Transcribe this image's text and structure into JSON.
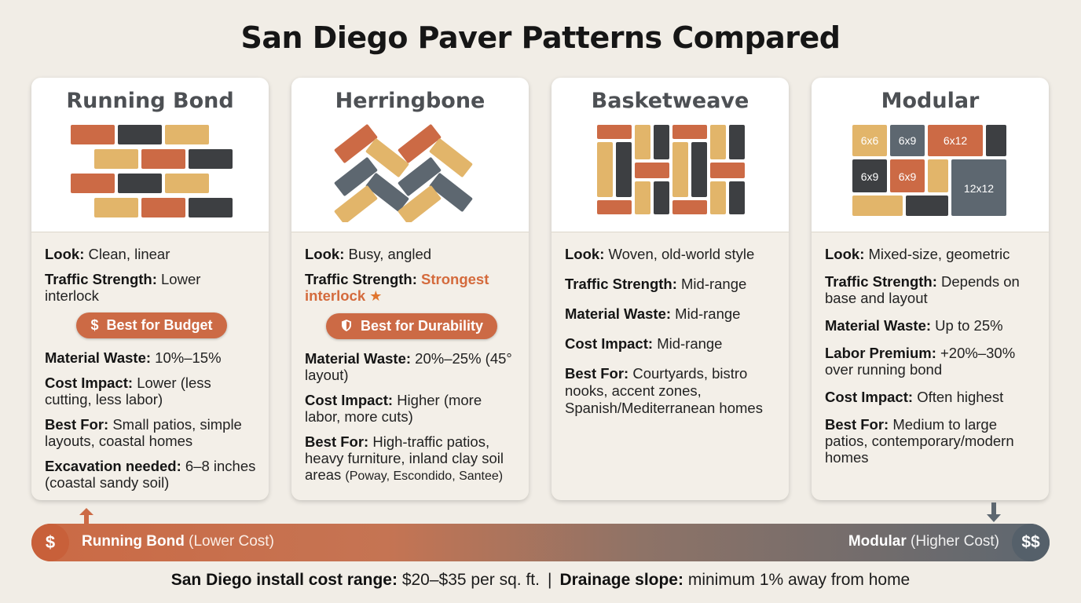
{
  "title": "San Diego Paver Patterns Compared",
  "colors": {
    "terracotta": "#cc6a45",
    "sand": "#e2b56a",
    "charcoal": "#3d3f42",
    "slate": "#5d6770",
    "background": "#f1ede6"
  },
  "cards": [
    {
      "name": "Running Bond",
      "rows": [
        {
          "label": "Look:",
          "value": "Clean, linear"
        },
        {
          "label": "Traffic Strength:",
          "value": "Lower interlock"
        }
      ],
      "badge": {
        "icon": "$",
        "text": "Best for Budget"
      },
      "rows2": [
        {
          "label": "Material Waste:",
          "value": "10%–15%"
        },
        {
          "label": "Cost Impact:",
          "value": "Lower (less cutting, less labor)"
        },
        {
          "label": "Best For:",
          "value": "Small patios, simple layouts, coastal homes"
        },
        {
          "label": "Excavation needed:",
          "value": "6–8 inches (coastal sandy soil)"
        }
      ]
    },
    {
      "name": "Herringbone",
      "rows": [
        {
          "label": "Look:",
          "value": "Busy, angled"
        },
        {
          "label": "Traffic Strength:",
          "value": "Strongest interlock"
        }
      ],
      "badge": {
        "icon": "shield",
        "text": "Best for Durability"
      },
      "rows2": [
        {
          "label": "Material Waste:",
          "value": "20%–25% (45° layout)"
        },
        {
          "label": "Cost Impact:",
          "value": "Higher (more labor, more cuts)"
        },
        {
          "label": "Best For:",
          "value": "High-traffic patios, heavy furniture, inland clay soil areas",
          "note": "(Poway, Escondido, Santee)"
        }
      ]
    },
    {
      "name": "Basketweave",
      "rows": [
        {
          "label": "Look:",
          "value": "Woven, old-world style"
        },
        {
          "label": "Traffic Strength:",
          "value": "Mid-range"
        },
        {
          "label": "Material Waste:",
          "value": "Mid-range"
        },
        {
          "label": "Cost Impact:",
          "value": "Mid-range"
        },
        {
          "label": "Best For:",
          "value": "Courtyards, bistro nooks, accent zones, Spanish/Mediterranean homes"
        }
      ]
    },
    {
      "name": "Modular",
      "tiles": [
        "6x6",
        "6x9",
        "6x12",
        "6x9",
        "6x9",
        "12x12"
      ],
      "rows": [
        {
          "label": "Look:",
          "value": "Mixed-size, geometric"
        },
        {
          "label": "Traffic Strength:",
          "value": "Depends on base and layout"
        },
        {
          "label": "Material Waste:",
          "value": "Up to 25%"
        },
        {
          "label": "Labor Premium:",
          "value": "+20%–30% over running bond"
        },
        {
          "label": "Cost Impact:",
          "value": "Often highest"
        },
        {
          "label": "Best For:",
          "value": "Medium to large patios, contemporary/modern homes"
        }
      ]
    }
  ],
  "scale": {
    "left_symbol": "$",
    "left_name": "Running Bond",
    "left_note": "(Lower Cost)",
    "right_name": "Modular",
    "right_note": "(Higher Cost)",
    "right_symbol": "$$"
  },
  "footer": {
    "cost_label": "San Diego install cost range:",
    "cost_value": "$20–$35 per sq. ft.",
    "separator": "|",
    "slope_label": "Drainage slope:",
    "slope_value": "minimum 1% away from home"
  }
}
